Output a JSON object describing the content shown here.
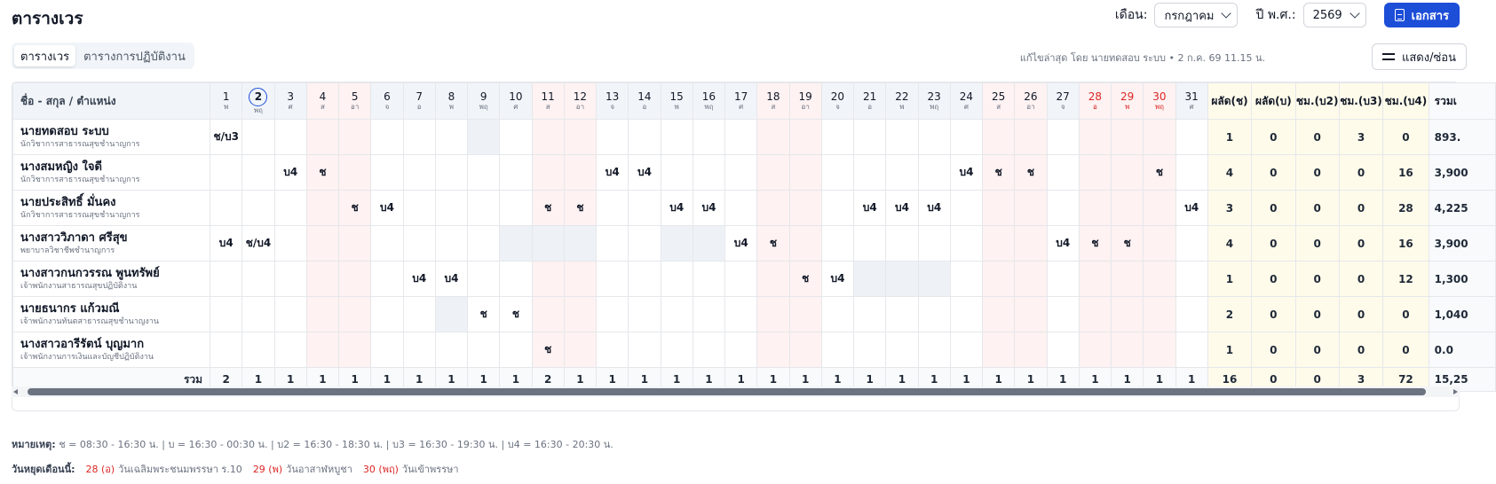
{
  "page_title": "ตารางเวร",
  "top": {
    "month_label": "เดือน:",
    "month_value": "กรกฎาคม",
    "year_label": "ปี พ.ศ.:",
    "year_value": "2569",
    "document_button": "เอกสาร"
  },
  "tabs": [
    "ตารางเวร",
    "ตารางการปฏิบัติงาน"
  ],
  "last_edit": "แก้ไขล่าสุด โดย นายทดสอบ ระบบ • 2 ก.ค. 69 11.15 น.",
  "show_hide_button": "แสดง/ซ่อน",
  "table": {
    "name_header": "ชื่อ - สกุล / ตำแหน่ง",
    "days": [
      {
        "d": "1",
        "w": "พ"
      },
      {
        "d": "2",
        "w": "พฤ"
      },
      {
        "d": "3",
        "w": "ศ"
      },
      {
        "d": "4",
        "w": "ส"
      },
      {
        "d": "5",
        "w": "อา"
      },
      {
        "d": "6",
        "w": "จ"
      },
      {
        "d": "7",
        "w": "อ"
      },
      {
        "d": "8",
        "w": "พ"
      },
      {
        "d": "9",
        "w": "พฤ"
      },
      {
        "d": "10",
        "w": "ศ"
      },
      {
        "d": "11",
        "w": "ส"
      },
      {
        "d": "12",
        "w": "อา"
      },
      {
        "d": "13",
        "w": "จ"
      },
      {
        "d": "14",
        "w": "อ"
      },
      {
        "d": "15",
        "w": "พ"
      },
      {
        "d": "16",
        "w": "พฤ"
      },
      {
        "d": "17",
        "w": "ศ"
      },
      {
        "d": "18",
        "w": "ส"
      },
      {
        "d": "19",
        "w": "อา"
      },
      {
        "d": "20",
        "w": "จ"
      },
      {
        "d": "21",
        "w": "อ"
      },
      {
        "d": "22",
        "w": "พ"
      },
      {
        "d": "23",
        "w": "พฤ"
      },
      {
        "d": "24",
        "w": "ศ"
      },
      {
        "d": "25",
        "w": "ส"
      },
      {
        "d": "26",
        "w": "อา"
      },
      {
        "d": "27",
        "w": "จ"
      },
      {
        "d": "28",
        "w": "อ"
      },
      {
        "d": "29",
        "w": "พ"
      },
      {
        "d": "30",
        "w": "พฤ"
      },
      {
        "d": "31",
        "w": "ศ"
      }
    ],
    "summary_headers": [
      "ผลัด(ช)",
      "ผลัด(บ)",
      "ชม.(บ2)",
      "ชม.(บ3)",
      "ชม.(บ4)",
      "รวมเ"
    ],
    "rows": [
      {
        "name": "นายทดสอบ ระบบ",
        "position": "นักวิชาการสาธารณสุขชำนาญการ",
        "shifts": {
          "1": "ช/บ3"
        },
        "sums": [
          "1",
          "0",
          "0",
          "3",
          "0"
        ],
        "total": "893."
      },
      {
        "name": "นางสมหญิง ใจดี",
        "position": "นักวิชาการสาธารณสุขชำนาญการ",
        "shifts": {
          "3": "บ4",
          "4": "ช",
          "13": "บ4",
          "14": "บ4",
          "24": "บ4",
          "25": "ช",
          "26": "ช",
          "30": "ช"
        },
        "sums": [
          "4",
          "0",
          "0",
          "0",
          "16"
        ],
        "total": "3,900"
      },
      {
        "name": "นายประสิทธิ์ มั่นคง",
        "position": "นักวิชาการสาธารณสุขชำนาญการ",
        "shifts": {
          "5": "ช",
          "6": "บ4",
          "11": "ช",
          "12": "ช",
          "15": "บ4",
          "16": "บ4",
          "21": "บ4",
          "22": "บ4",
          "23": "บ4",
          "31": "บ4"
        },
        "sums": [
          "3",
          "0",
          "0",
          "0",
          "28"
        ],
        "total": "4,225"
      },
      {
        "name": "นางสาววิภาดา ศรีสุข",
        "position": "พยาบาลวิชาชีพชำนาญการ",
        "shifts": {
          "1": "บ4",
          "2": "ช/บ4",
          "17": "บ4",
          "18": "ช",
          "27": "บ4",
          "28": "ช",
          "29": "ช"
        },
        "sums": [
          "4",
          "0",
          "0",
          "0",
          "16"
        ],
        "total": "3,900"
      },
      {
        "name": "นางสาวกนกวรรณ พูนทรัพย์",
        "position": "เจ้าพนักงานสาธารณสุขปฏิบัติงาน",
        "shifts": {
          "7": "บ4",
          "8": "บ4",
          "19": "ช",
          "20": "บ4"
        },
        "sums": [
          "1",
          "0",
          "0",
          "0",
          "12"
        ],
        "total": "1,300"
      },
      {
        "name": "นายธนากร แก้วมณี",
        "position": "เจ้าพนักงานทันตสาธารณสุขชำนาญงาน",
        "shifts": {
          "9": "ช",
          "10": "ช"
        },
        "sums": [
          "2",
          "0",
          "0",
          "0",
          "0"
        ],
        "total": "1,040"
      },
      {
        "name": "นางสาวอารีรัตน์ บุญมาก",
        "position": "เจ้าพนักงานการเงินและบัญชีปฏิบัติงาน",
        "shifts": {
          "11": "ช"
        },
        "sums": [
          "1",
          "0",
          "0",
          "0",
          "0"
        ],
        "total": "0.0"
      }
    ],
    "footer_label": "รวม",
    "footer_days": [
      "2",
      "1",
      "1",
      "1",
      "1",
      "1",
      "1",
      "1",
      "1",
      "1",
      "2",
      "1",
      "1",
      "1",
      "1",
      "1",
      "1",
      "1",
      "1",
      "1",
      "1",
      "1",
      "1",
      "1",
      "1",
      "1",
      "1",
      "1",
      "1",
      "1",
      "1"
    ],
    "footer_sums": [
      "16",
      "0",
      "0",
      "3",
      "72"
    ],
    "footer_total": "15,25"
  },
  "notes": {
    "label": "หมายเหตุ:",
    "text": "ช = 08:30 - 16:30 น. | บ = 16:30 - 00:30 น. | บ2 = 16:30 - 18:30 น. | บ3 = 16:30 - 19:30 น. | บ4 = 16:30 - 20:30 น."
  },
  "holidays": {
    "label": "วันหยุดเดือนนี้:",
    "items": [
      {
        "day": "28 (อ)",
        "name": "วันเฉลิมพระชนมพรรษา ร.10"
      },
      {
        "day": "29 (พ)",
        "name": "วันอาสาฬหบูชา"
      },
      {
        "day": "30 (พฤ)",
        "name": "วันเข้าพรรษา"
      }
    ]
  },
  "colors": {
    "primary": "#1d4ed8",
    "weekend_bg": "#fef2f2",
    "holiday_text": "#dc2626",
    "summary_bg": "#fffbeb",
    "leave_bg": "#eef2f7"
  }
}
